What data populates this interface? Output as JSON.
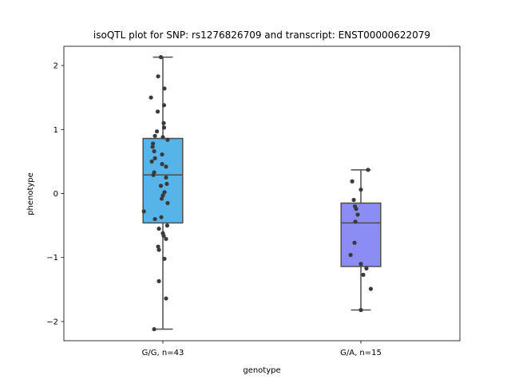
{
  "chart_data": {
    "type": "box",
    "title": "isoQTL plot for SNP: rs1276826709 and transcript: ENST00000622079",
    "xlabel": "genotype",
    "ylabel": "phenotype",
    "categories": [
      "G/G, n=43",
      "G/A, n=15"
    ],
    "ylim": [
      -2.3,
      2.3
    ],
    "yticks": [
      -2,
      -1,
      0,
      1,
      2
    ],
    "ytick_labels": [
      "−2",
      "−1",
      "0",
      "1",
      "2"
    ],
    "grid": false,
    "boxes": [
      {
        "category": "G/G, n=43",
        "color": "#56b4e9",
        "whisker_low": -2.12,
        "q1": -0.46,
        "median": 0.29,
        "q3": 0.86,
        "whisker_high": 2.13,
        "points": [
          [
            -0.05,
            2.13
          ],
          [
            -0.12,
            1.83
          ],
          [
            0.04,
            1.64
          ],
          [
            -0.3,
            1.5
          ],
          [
            0.03,
            1.38
          ],
          [
            -0.13,
            1.28
          ],
          [
            0.02,
            1.1
          ],
          [
            0.03,
            1.03
          ],
          [
            -0.15,
            0.97
          ],
          [
            -0.2,
            0.9
          ],
          [
            0.0,
            0.88
          ],
          [
            0.12,
            0.84
          ],
          [
            -0.25,
            0.78
          ],
          [
            -0.26,
            0.73
          ],
          [
            -0.22,
            0.66
          ],
          [
            -0.02,
            0.61
          ],
          [
            -0.2,
            0.55
          ],
          [
            -0.28,
            0.5
          ],
          [
            -0.02,
            0.46
          ],
          [
            0.08,
            0.42
          ],
          [
            -0.22,
            0.33
          ],
          [
            -0.24,
            0.29
          ],
          [
            0.08,
            0.25
          ],
          [
            -0.05,
            0.12
          ],
          [
            0.1,
            0.15
          ],
          [
            0.04,
            0.02
          ],
          [
            0.0,
            -0.03
          ],
          [
            -0.03,
            -0.08
          ],
          [
            0.12,
            -0.15
          ],
          [
            -0.48,
            -0.28
          ],
          [
            -0.04,
            -0.37
          ],
          [
            -0.2,
            -0.4
          ],
          [
            0.11,
            -0.5
          ],
          [
            -0.1,
            -0.55
          ],
          [
            0.0,
            -0.62
          ],
          [
            0.02,
            -0.66
          ],
          [
            0.08,
            -0.71
          ],
          [
            -0.12,
            -0.83
          ],
          [
            -0.1,
            -0.88
          ],
          [
            0.04,
            -1.02
          ],
          [
            -0.1,
            -1.37
          ],
          [
            0.08,
            -1.64
          ],
          [
            -0.22,
            -2.12
          ]
        ]
      },
      {
        "category": "G/A, n=15",
        "color": "#8c8cf5",
        "whisker_low": -1.82,
        "q1": -1.14,
        "median": -0.46,
        "q3": -0.15,
        "whisker_high": 0.37,
        "points": [
          [
            0.18,
            0.37
          ],
          [
            -0.22,
            0.19
          ],
          [
            0.0,
            0.06
          ],
          [
            -0.18,
            -0.1
          ],
          [
            -0.15,
            -0.2
          ],
          [
            -0.12,
            -0.24
          ],
          [
            -0.08,
            -0.33
          ],
          [
            -0.14,
            -0.44
          ],
          [
            -0.16,
            -0.77
          ],
          [
            -0.26,
            -0.96
          ],
          [
            0.0,
            -1.1
          ],
          [
            0.14,
            -1.17
          ],
          [
            0.06,
            -1.27
          ],
          [
            0.25,
            -1.49
          ],
          [
            0.0,
            -1.82
          ]
        ]
      }
    ]
  }
}
